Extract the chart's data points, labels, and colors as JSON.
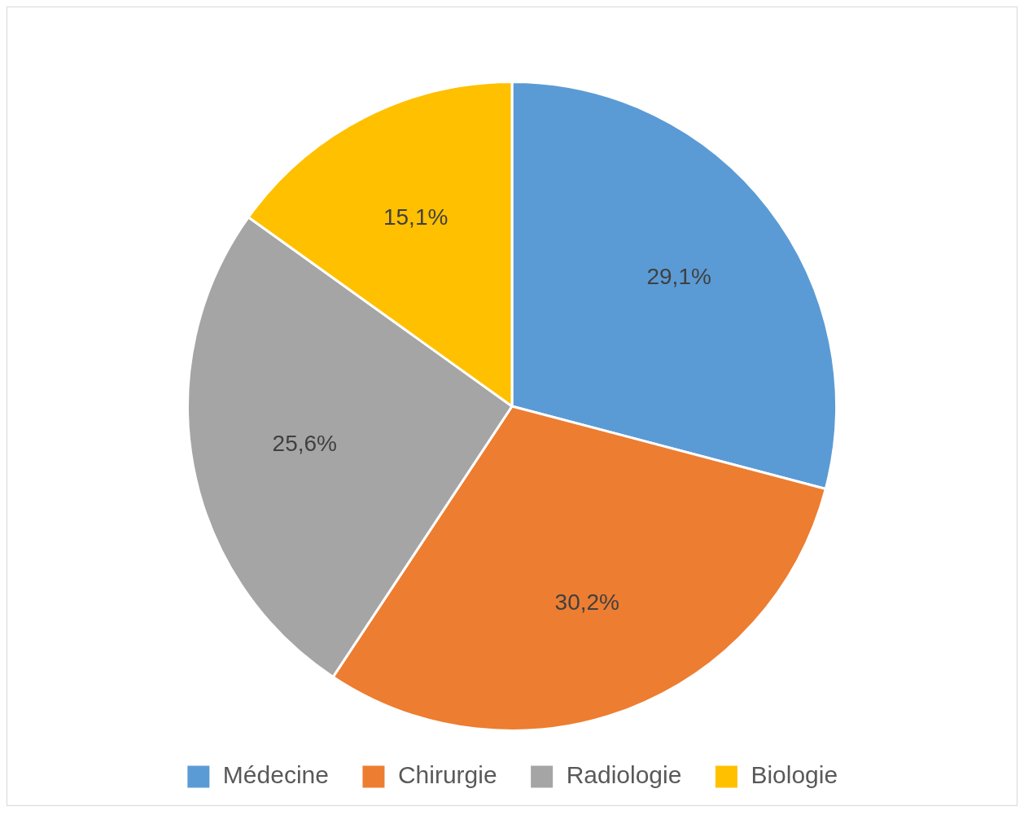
{
  "chart_data": {
    "type": "pie",
    "categories": [
      "Médecine",
      "Chirurgie",
      "Radiologie",
      "Biologie"
    ],
    "values": [
      29.1,
      30.2,
      25.6,
      15.1
    ],
    "colors": [
      "#5b9bd5",
      "#ed7d31",
      "#a5a5a5",
      "#ffc000"
    ],
    "value_labels": [
      "29,1%",
      "30,2%",
      "25,6%",
      "15,1%"
    ],
    "legend": "bottom"
  }
}
